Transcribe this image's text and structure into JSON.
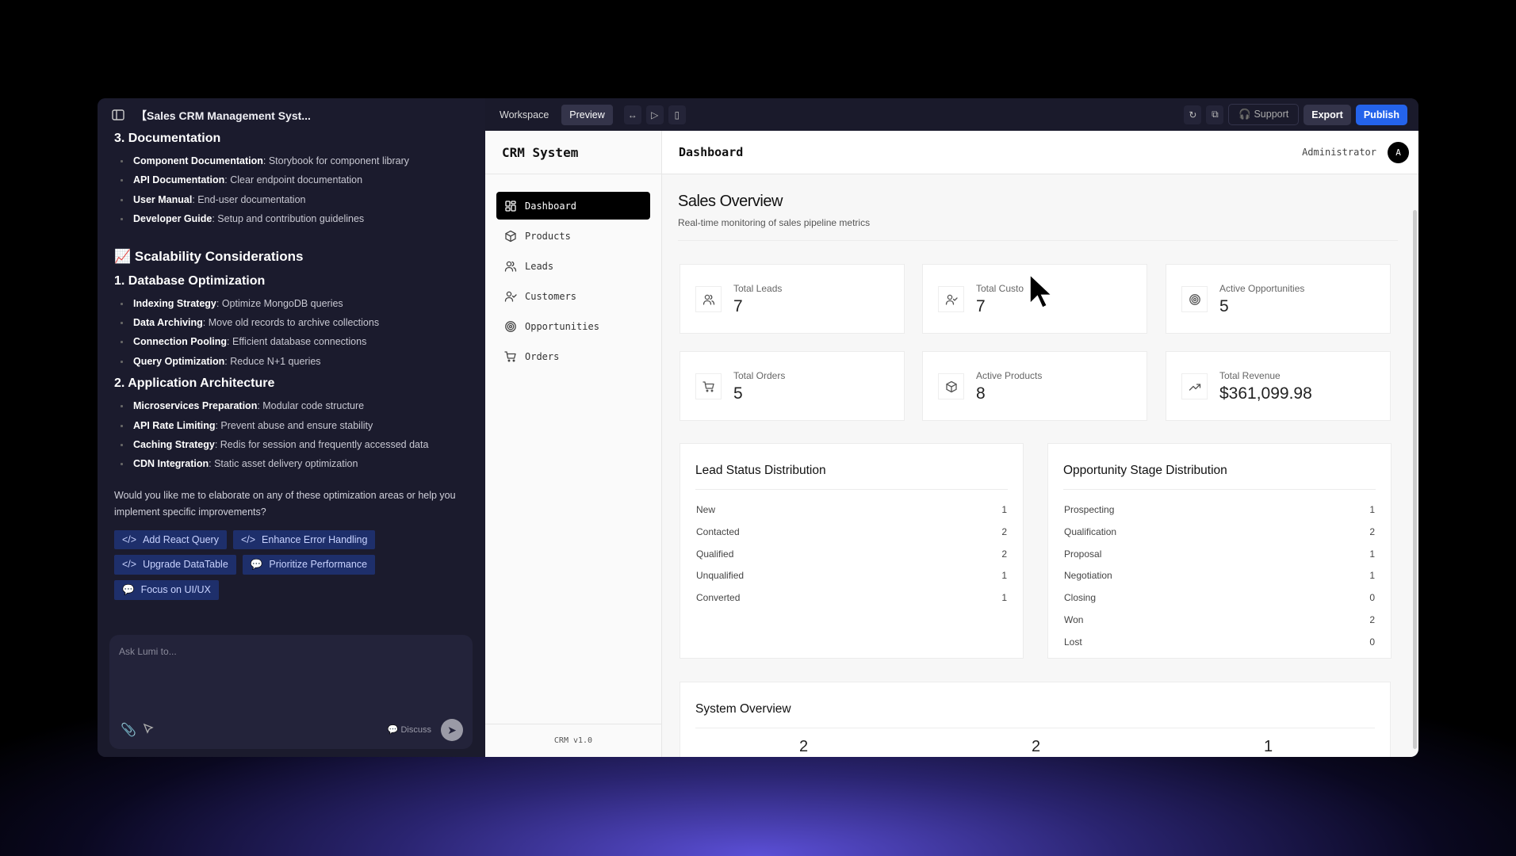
{
  "project_title": "【Sales CRM Management Syst...",
  "chat": {
    "sections": [
      {
        "heading": "3. Documentation",
        "level": 3,
        "items": [
          {
            "b": "Component Documentation",
            "t": ": Storybook for component library"
          },
          {
            "b": "API Documentation",
            "t": ": Clear endpoint documentation"
          },
          {
            "b": "User Manual",
            "t": ": End-user documentation"
          },
          {
            "b": "Developer Guide",
            "t": ": Setup and contribution guidelines"
          }
        ]
      },
      {
        "heading": "📈 Scalability Considerations",
        "level": 2,
        "items": []
      },
      {
        "heading": "1. Database Optimization",
        "level": 3,
        "items": [
          {
            "b": "Indexing Strategy",
            "t": ": Optimize MongoDB queries"
          },
          {
            "b": "Data Archiving",
            "t": ": Move old records to archive collections"
          },
          {
            "b": "Connection Pooling",
            "t": ": Efficient database connections"
          },
          {
            "b": "Query Optimization",
            "t": ": Reduce N+1 queries"
          }
        ]
      },
      {
        "heading": "2. Application Architecture",
        "level": 3,
        "items": [
          {
            "b": "Microservices Preparation",
            "t": ": Modular code structure"
          },
          {
            "b": "API Rate Limiting",
            "t": ": Prevent abuse and ensure stability"
          },
          {
            "b": "Caching Strategy",
            "t": ": Redis for session and frequently accessed data"
          },
          {
            "b": "CDN Integration",
            "t": ": Static asset delivery optimization"
          }
        ]
      }
    ],
    "question": "Would you like me to elaborate on any of these optimization areas or help you implement specific improvements?",
    "suggestions": [
      {
        "label": "Add React Query",
        "icon": "code-icon"
      },
      {
        "label": "Enhance Error Handling",
        "icon": "code-icon"
      },
      {
        "label": "Upgrade DataTable",
        "icon": "code-icon"
      },
      {
        "label": "Prioritize Performance",
        "icon": "chat-icon"
      },
      {
        "label": "Focus on UI/UX",
        "icon": "chat-icon"
      }
    ],
    "input_placeholder": "Ask Lumi to...",
    "discuss_label": "Discuss"
  },
  "toolbar": {
    "workspace": "Workspace",
    "preview": "Preview",
    "support": "Support",
    "export": "Export",
    "publish": "Publish",
    "publish_color": "#2463eb"
  },
  "app": {
    "brand": "CRM System",
    "version": "CRM v1.0",
    "page_title": "Dashboard",
    "user": "Administrator",
    "avatar": "A",
    "nav": [
      {
        "label": "Dashboard",
        "icon": "dashboard-icon",
        "active": true
      },
      {
        "label": "Products",
        "icon": "package-icon"
      },
      {
        "label": "Leads",
        "icon": "users-icon"
      },
      {
        "label": "Customers",
        "icon": "user-check-icon"
      },
      {
        "label": "Opportunities",
        "icon": "target-icon"
      },
      {
        "label": "Orders",
        "icon": "cart-icon"
      }
    ],
    "overview_title": "Sales Overview",
    "overview_subtitle": "Real-time monitoring of sales pipeline metrics",
    "stats": [
      {
        "label": "Total Leads",
        "value": "7",
        "icon": "users-icon"
      },
      {
        "label": "Total Custo",
        "value": "7",
        "icon": "user-check-icon"
      },
      {
        "label": "Active Opportunities",
        "value": "5",
        "icon": "target-icon"
      },
      {
        "label": "Total Orders",
        "value": "5",
        "icon": "cart-icon"
      },
      {
        "label": "Active Products",
        "value": "8",
        "icon": "package-icon"
      },
      {
        "label": "Total Revenue",
        "value": "$361,099.98",
        "icon": "trending-up-icon"
      }
    ],
    "lead_status": {
      "title": "Lead Status Distribution",
      "rows": [
        {
          "label": "New",
          "value": "1"
        },
        {
          "label": "Contacted",
          "value": "2"
        },
        {
          "label": "Qualified",
          "value": "2"
        },
        {
          "label": "Unqualified",
          "value": "1"
        },
        {
          "label": "Converted",
          "value": "1"
        }
      ]
    },
    "opp_stage": {
      "title": "Opportunity Stage Distribution",
      "rows": [
        {
          "label": "Prospecting",
          "value": "1"
        },
        {
          "label": "Qualification",
          "value": "2"
        },
        {
          "label": "Proposal",
          "value": "1"
        },
        {
          "label": "Negotiation",
          "value": "1"
        },
        {
          "label": "Closing",
          "value": "0"
        },
        {
          "label": "Won",
          "value": "2"
        },
        {
          "label": "Lost",
          "value": "0"
        }
      ]
    },
    "system_overview": {
      "title": "System Overview",
      "values": [
        "2",
        "2",
        "1"
      ]
    }
  }
}
